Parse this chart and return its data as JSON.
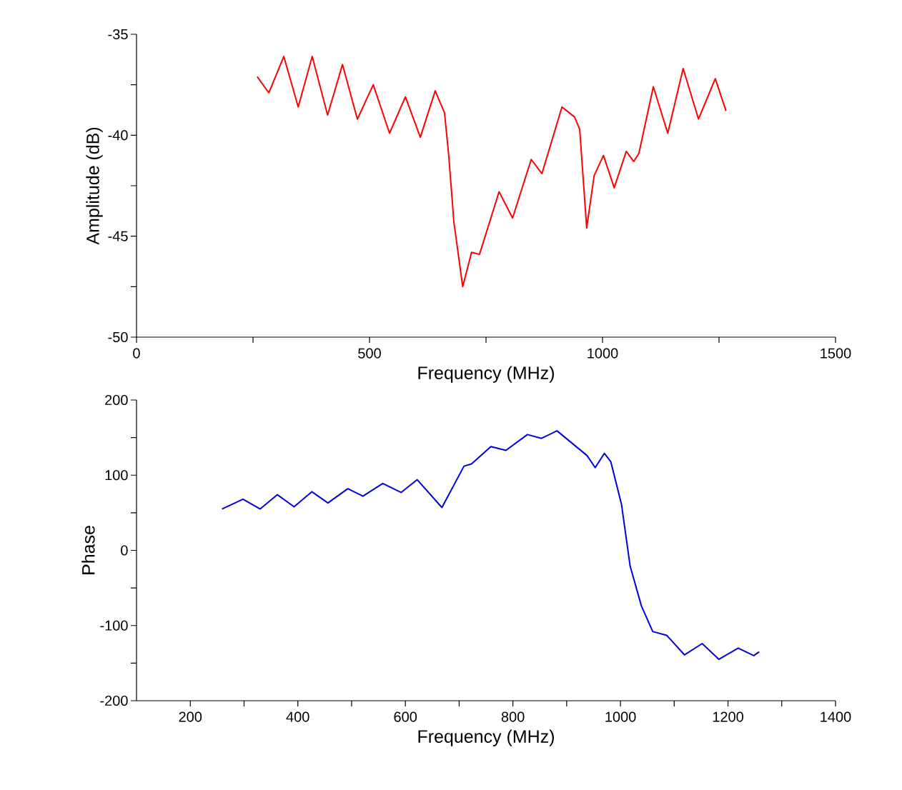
{
  "chart_data": [
    {
      "type": "line",
      "xlabel": "Frequency (MHz)",
      "ylabel": "Amplitude (dB)",
      "xlim": [
        0,
        1500
      ],
      "ylim": [
        -50,
        -35
      ],
      "xticks": [
        0,
        {
          "value": 250,
          "label": null
        },
        500,
        {
          "value": 750,
          "label": null
        },
        1000,
        {
          "value": 1250,
          "label": null
        },
        1500
      ],
      "yticks": [
        -50,
        {
          "value": -47.5,
          "label": null
        },
        -45,
        {
          "value": -42.5,
          "label": null
        },
        -40,
        {
          "value": -37.5,
          "label": null
        },
        -35
      ],
      "grid": false,
      "series": [
        {
          "color": "#ff0000",
          "x": [
            259,
            284,
            316,
            347,
            377,
            410,
            442,
            474,
            508,
            543,
            577,
            609,
            641,
            661,
            670,
            681,
            700,
            719,
            736,
            778,
            807,
            847,
            870,
            913,
            940,
            951,
            966,
            982,
            1002,
            1025,
            1051,
            1067,
            1078,
            1109,
            1140,
            1173,
            1206,
            1242,
            1265
          ],
          "values": [
            -37.1,
            -37.9,
            -36.1,
            -38.6,
            -36.1,
            -39.0,
            -36.5,
            -39.2,
            -37.5,
            -39.9,
            -38.1,
            -40.1,
            -37.8,
            -38.9,
            -41.0,
            -44.3,
            -47.5,
            -45.8,
            -45.9,
            -42.8,
            -44.1,
            -41.2,
            -41.9,
            -38.6,
            -39.1,
            -39.7,
            -44.6,
            -42.0,
            -41.0,
            -42.6,
            -40.8,
            -41.3,
            -40.9,
            -37.6,
            -39.9,
            -36.7,
            -39.2,
            -37.2,
            -38.8
          ]
        }
      ]
    },
    {
      "type": "line",
      "xlabel": "Frequency (MHz)",
      "ylabel": "Phase",
      "xlim": [
        100,
        1400
      ],
      "ylim": [
        -200,
        200
      ],
      "xticks": [
        200,
        {
          "value": 300,
          "label": null
        },
        400,
        {
          "value": 500,
          "label": null
        },
        600,
        {
          "value": 700,
          "label": null
        },
        800,
        {
          "value": 900,
          "label": null
        },
        1000,
        {
          "value": 1100,
          "label": null
        },
        1200,
        {
          "value": 1300,
          "label": null
        },
        1400
      ],
      "yticks": [
        -200,
        {
          "value": -150,
          "label": null
        },
        -100,
        {
          "value": -50,
          "label": null
        },
        0,
        {
          "value": 50,
          "label": null
        },
        100,
        {
          "value": 150,
          "label": null
        },
        200
      ],
      "grid": false,
      "series": [
        {
          "color": "#0000dd",
          "x": [
            259,
            298,
            330,
            362,
            393,
            426,
            456,
            493,
            521,
            558,
            592,
            622,
            668,
            709,
            723,
            759,
            787,
            827,
            853,
            882,
            938,
            953,
            970,
            982,
            1002,
            1018,
            1039,
            1060,
            1086,
            1119,
            1152,
            1183,
            1219,
            1248,
            1258
          ],
          "values": [
            55,
            68,
            55,
            74,
            58,
            78,
            63,
            82,
            72,
            89,
            77,
            94,
            57,
            112,
            115,
            138,
            133,
            154,
            149,
            159,
            126,
            110,
            129,
            118,
            61,
            -21,
            -74,
            -108,
            -113,
            -139,
            -124,
            -145,
            -130,
            -140,
            -135
          ]
        }
      ]
    }
  ]
}
